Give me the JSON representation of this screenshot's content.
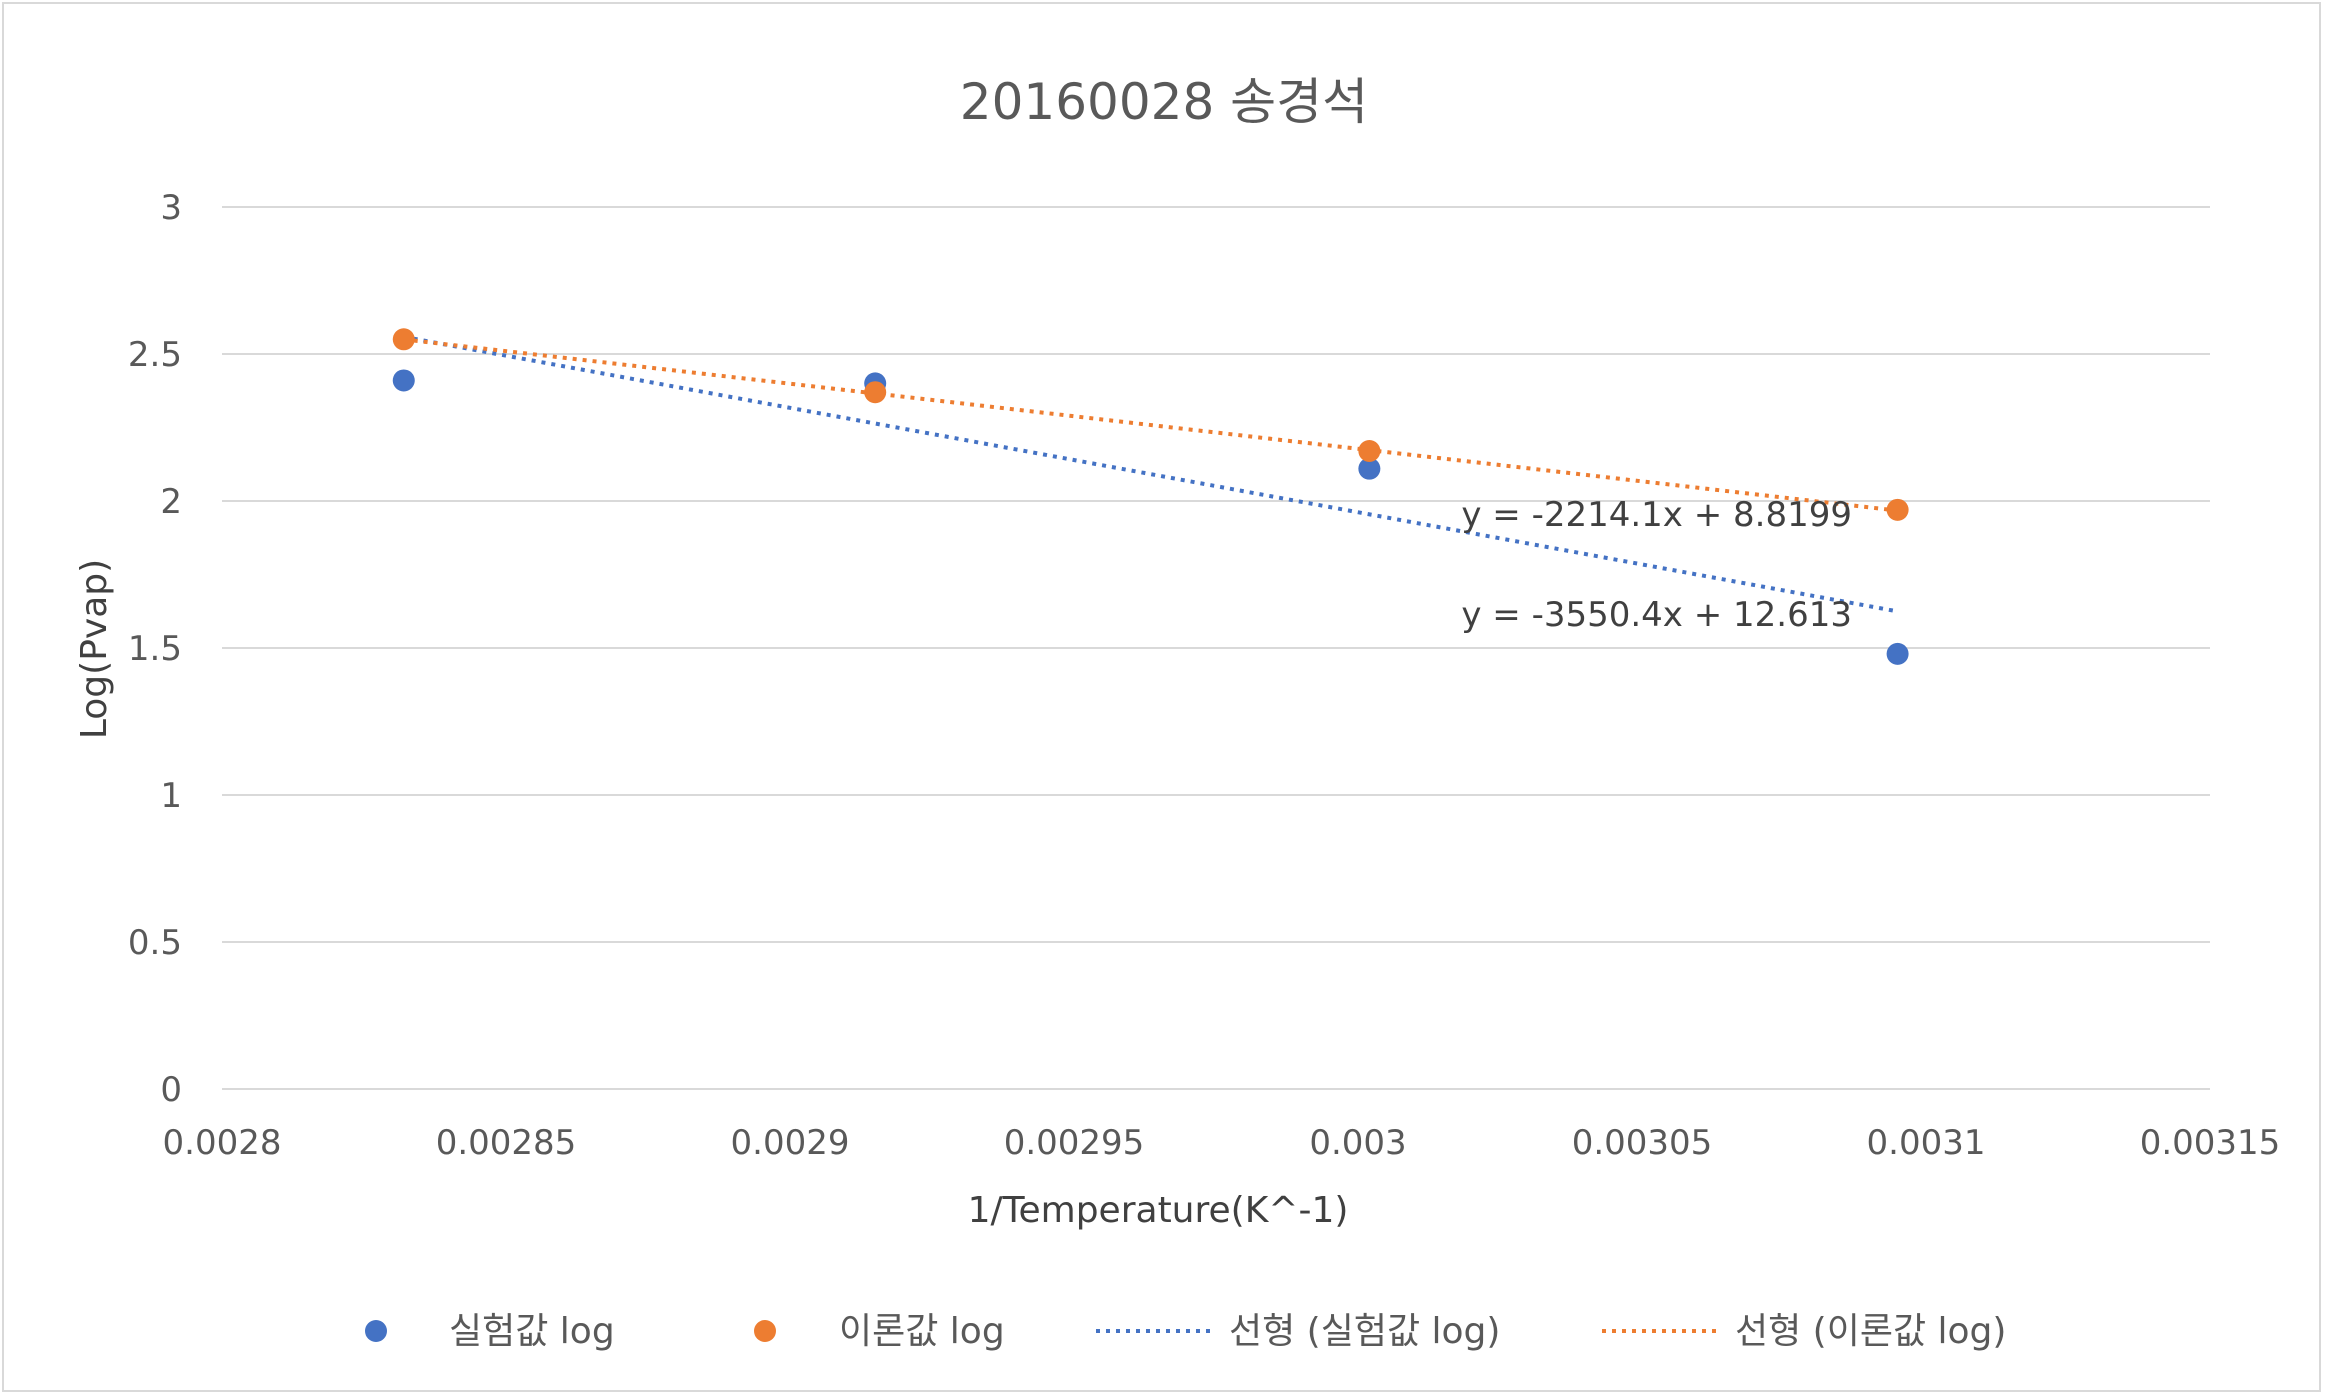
{
  "chart_data": {
    "type": "scatter",
    "title": "20160028 송경석",
    "xlabel": "1/Temperature(K^-1)",
    "ylabel": "Log(Pvap)",
    "xlim": [
      0.0028,
      0.00315
    ],
    "ylim": [
      0,
      3
    ],
    "x_ticks": [
      "0.0028",
      "0.00285",
      "0.0029",
      "0.00295",
      "0.003",
      "0.00305",
      "0.0031",
      "0.00315"
    ],
    "y_ticks": [
      "0",
      "0.5",
      "1",
      "1.5",
      "2",
      "2.5",
      "3"
    ],
    "grid": "horizontal",
    "legend_position": "bottom",
    "series": [
      {
        "name": "실험값 log",
        "color": "#4472c4",
        "x": [
          0.002832,
          0.002915,
          0.003002,
          0.003095
        ],
        "y": [
          2.41,
          2.4,
          2.11,
          1.48
        ]
      },
      {
        "name": "이론값 log",
        "color": "#ed7d31",
        "x": [
          0.002832,
          0.002915,
          0.003002,
          0.003095
        ],
        "y": [
          2.55,
          2.37,
          2.17,
          1.97
        ]
      }
    ],
    "trendlines": [
      {
        "name": "선형 (실험값 log)",
        "color": "#4472c4",
        "style": "dotted",
        "slope": -3550.4,
        "intercept": 12.613,
        "x_range": [
          0.002832,
          0.003095
        ],
        "equation": "y = -3550.4x + 12.613"
      },
      {
        "name": "선형 (이론값 log)",
        "color": "#ed7d31",
        "style": "dotted",
        "slope": -2214.1,
        "intercept": 8.8199,
        "x_range": [
          0.002832,
          0.003095
        ],
        "equation": "y = -2214.1x + 8.8199"
      }
    ]
  }
}
